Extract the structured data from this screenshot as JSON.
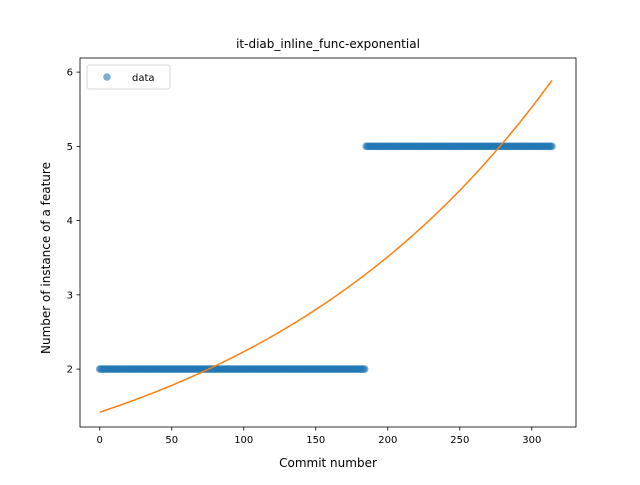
{
  "chart_data": {
    "type": "scatter",
    "title": "it-diab_inline_func-exponential",
    "xlabel": "Commit number",
    "ylabel": "Number of instance of a feature",
    "xlim": [
      -13.7,
      330.7
    ],
    "ylim": [
      1.22,
      6.19
    ],
    "xticks": [
      0,
      50,
      100,
      150,
      200,
      250,
      300
    ],
    "yticks": [
      2,
      3,
      4,
      5,
      6
    ],
    "grid": false,
    "legend": {
      "location": "upper-left",
      "entries": [
        "data"
      ]
    },
    "series": [
      {
        "name": "data",
        "kind": "points",
        "color": "#1f77b4",
        "alpha": 0.6,
        "segments": [
          {
            "x_start": 0,
            "x_end": 184,
            "y": 2
          },
          {
            "x_start": 185,
            "x_end": 314,
            "y": 5
          }
        ]
      },
      {
        "kind": "line",
        "color": "#ff7f0e",
        "function": "exponential",
        "a": 1.42,
        "b": 0.00453,
        "x_range": [
          0,
          314
        ]
      }
    ]
  }
}
